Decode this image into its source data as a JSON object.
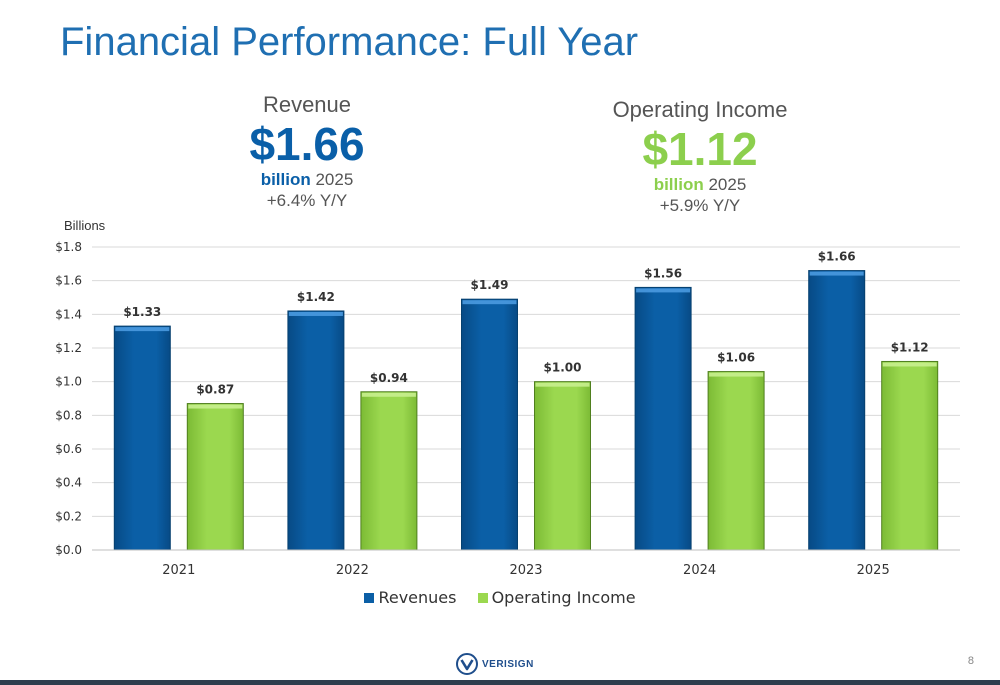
{
  "slide": {
    "title": "Financial Performance: Full Year",
    "page_number": "8",
    "logo_text": "VERISIGN"
  },
  "kpis": {
    "revenue": {
      "label": "Revenue",
      "value": "$1.66",
      "unit": "billion",
      "year": "2025",
      "change": "+6.4% Y/Y",
      "color": "#0a5fa8"
    },
    "operating_income": {
      "label": "Operating Income",
      "value": "$1.12",
      "unit": "billion",
      "year": "2025",
      "change": "+5.9% Y/Y",
      "color": "#8ccf4d"
    }
  },
  "chart_data": {
    "type": "bar",
    "units_label": "Billions",
    "categories": [
      "2021",
      "2022",
      "2023",
      "2024",
      "2025"
    ],
    "series": [
      {
        "name": "Revenues",
        "values": [
          1.33,
          1.42,
          1.49,
          1.56,
          1.66
        ],
        "labels": [
          "$1.33",
          "$1.42",
          "$1.49",
          "$1.56",
          "$1.66"
        ],
        "color": "#0b5fa6"
      },
      {
        "name": "Operating Income",
        "values": [
          0.87,
          0.94,
          1.0,
          1.06,
          1.12
        ],
        "labels": [
          "$0.87",
          "$0.94",
          "$1.00",
          "$1.06",
          "$1.12"
        ],
        "color": "#9bd84f"
      }
    ],
    "ylim": [
      0,
      1.8
    ],
    "yticks": [
      "$0.0",
      "$0.2",
      "$0.4",
      "$0.6",
      "$0.8",
      "$1.0",
      "$1.2",
      "$1.4",
      "$1.6",
      "$1.8"
    ],
    "grid": true,
    "legend": "bottom"
  }
}
